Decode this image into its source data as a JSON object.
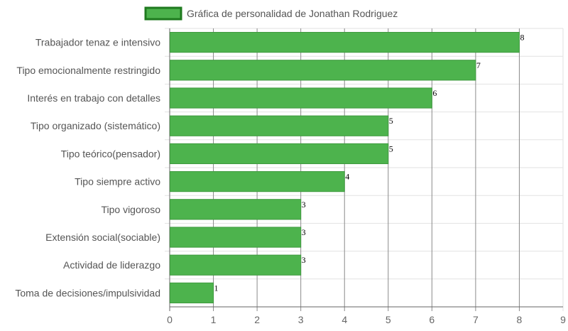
{
  "chart_data": {
    "type": "bar",
    "orientation": "horizontal",
    "categories": [
      "Trabajador tenaz e intensivo",
      "Tipo emocionalmente restringido",
      "Interés en trabajo con detalles",
      "Tipo organizado (sistemático)",
      "Tipo teórico(pensador)",
      "Tipo siempre activo",
      "Tipo vigoroso",
      "Extensión social(sociable)",
      "Actividad de liderazgo",
      "Toma de decisiones/impulsividad"
    ],
    "series": [
      {
        "name": "Gráfica de personalidad de Jonathan Rodriguez",
        "values": [
          8,
          7,
          6,
          5,
          5,
          4,
          3,
          3,
          3,
          1
        ]
      }
    ],
    "xlim": [
      0,
      9
    ],
    "x_ticks": [
      "0",
      "1",
      "2",
      "3",
      "4",
      "5",
      "6",
      "7",
      "8",
      "9"
    ],
    "grid": true,
    "legend": "top-center",
    "data_labels": true,
    "colors": {
      "bar_fill": "#4db34d",
      "bar_border": "#3f9a3f",
      "legend_fill": "#4db34d",
      "legend_border": "#1f7a1f",
      "grid_major": "#8a8a8a",
      "grid_minor": "#e2e2e2"
    }
  }
}
